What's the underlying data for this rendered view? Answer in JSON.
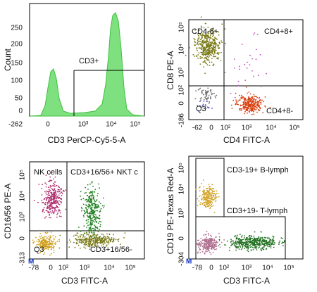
{
  "panels": [
    {
      "y_label": "Count",
      "x_label": "CD3 PerCP-Cy5-5-A",
      "y_ticks": [
        "250",
        "200",
        "150",
        "100",
        "50",
        "0"
      ],
      "x_ticks": [
        "-262",
        "0",
        "10³",
        "10⁴",
        "10⁵"
      ],
      "gate_labels": [
        "CD3+"
      ]
    },
    {
      "y_label": "CD8 PE-A",
      "x_label": "CD4 FITC-A",
      "y_ticks": [
        "10⁵",
        "10⁴",
        "10³",
        "10²",
        "0",
        "-186"
      ],
      "x_ticks": [
        "-62",
        "0",
        "10²",
        "10³",
        "10⁴",
        "10⁵"
      ],
      "gate_labels": [
        "CD4-8+",
        "CD4+8+",
        "Q3",
        "CD4+8-"
      ]
    },
    {
      "y_label": "CD16/56 PE-A",
      "x_label": "CD3 FITC-A",
      "y_ticks": [
        "10⁵",
        "10⁴",
        "10³",
        "0",
        "-313"
      ],
      "x_ticks": [
        "-78",
        "0",
        "10²",
        "10³",
        "10⁴",
        "10⁵"
      ],
      "gate_labels": [
        "NK cells",
        "CD3+16/56+ NKT c",
        "Q3",
        "CD3+16/56-"
      ],
      "marker": "M"
    },
    {
      "y_label": "CD19 PE-Texas Red-A",
      "x_label": "CD3 FITC-A",
      "y_ticks": [
        "10⁵",
        "10⁴",
        "10³",
        "0",
        "-304"
      ],
      "x_ticks": [
        "-78",
        "0",
        "10²",
        "10³",
        "10⁴",
        "10⁵"
      ],
      "gate_labels": [
        "CD3-19+ B-lymph",
        "CD3+19- T-lymph"
      ],
      "marker": "M"
    }
  ]
}
